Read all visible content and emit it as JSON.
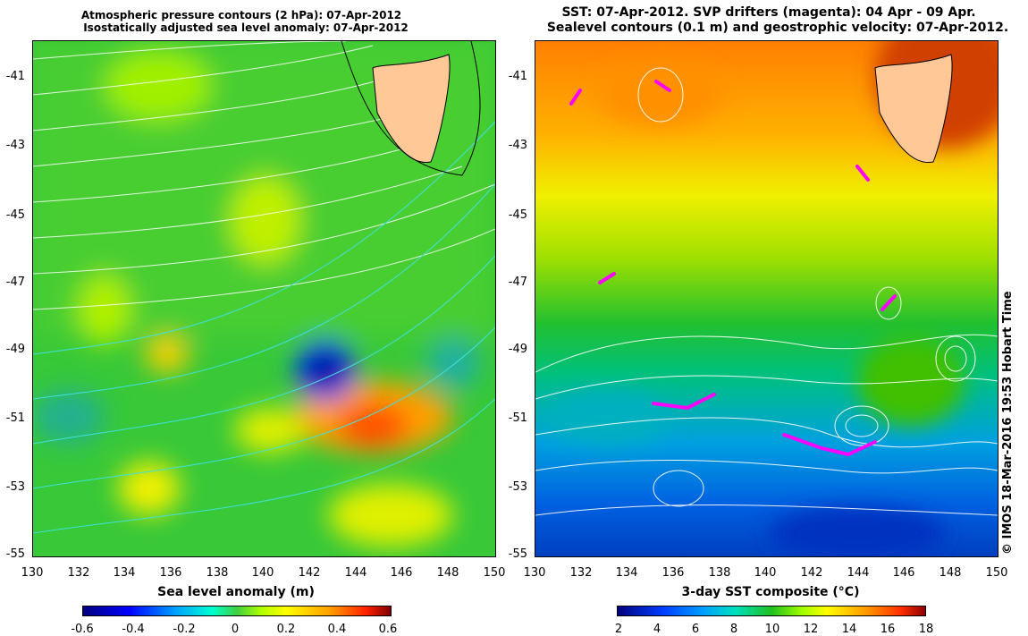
{
  "left": {
    "title_line1": "Atmospheric pressure contours (2 hPa): 07-Apr-2012",
    "title_line2": "Isostatically adjusted sea level anomaly: 07-Apr-2012",
    "colorbar_title": "Sea level anomaly (m)",
    "colorbar_ticks": [
      "-0.6",
      "-0.4",
      "-0.2",
      "0",
      "0.2",
      "0.4",
      "0.6"
    ]
  },
  "right": {
    "title_line1": "SST: 07-Apr-2012. SVP drifters (magenta): 04 Apr - 09 Apr.",
    "title_line2": "Sealevel contours (0.1 m) and geostrophic velocity: 07-Apr-2012.",
    "colorbar_title": "3-day SST composite (°C)",
    "colorbar_ticks": [
      "2",
      "4",
      "6",
      "8",
      "10",
      "12",
      "14",
      "16",
      "18"
    ]
  },
  "axes": {
    "y_ticks": [
      "-41",
      "-43",
      "-45",
      "-47",
      "-49",
      "-51",
      "-53",
      "-55"
    ],
    "x_ticks": [
      "130",
      "132",
      "134",
      "136",
      "138",
      "140",
      "142",
      "144",
      "146",
      "148",
      "150"
    ]
  },
  "credit": "© IMOS 18-Mar-2016 19:53 Hobart Time",
  "colors": {
    "land": "#ffc896",
    "drifter": "#ff00ff",
    "contour_white": "#ffffff",
    "contour_cyan": "#40e0e0"
  }
}
